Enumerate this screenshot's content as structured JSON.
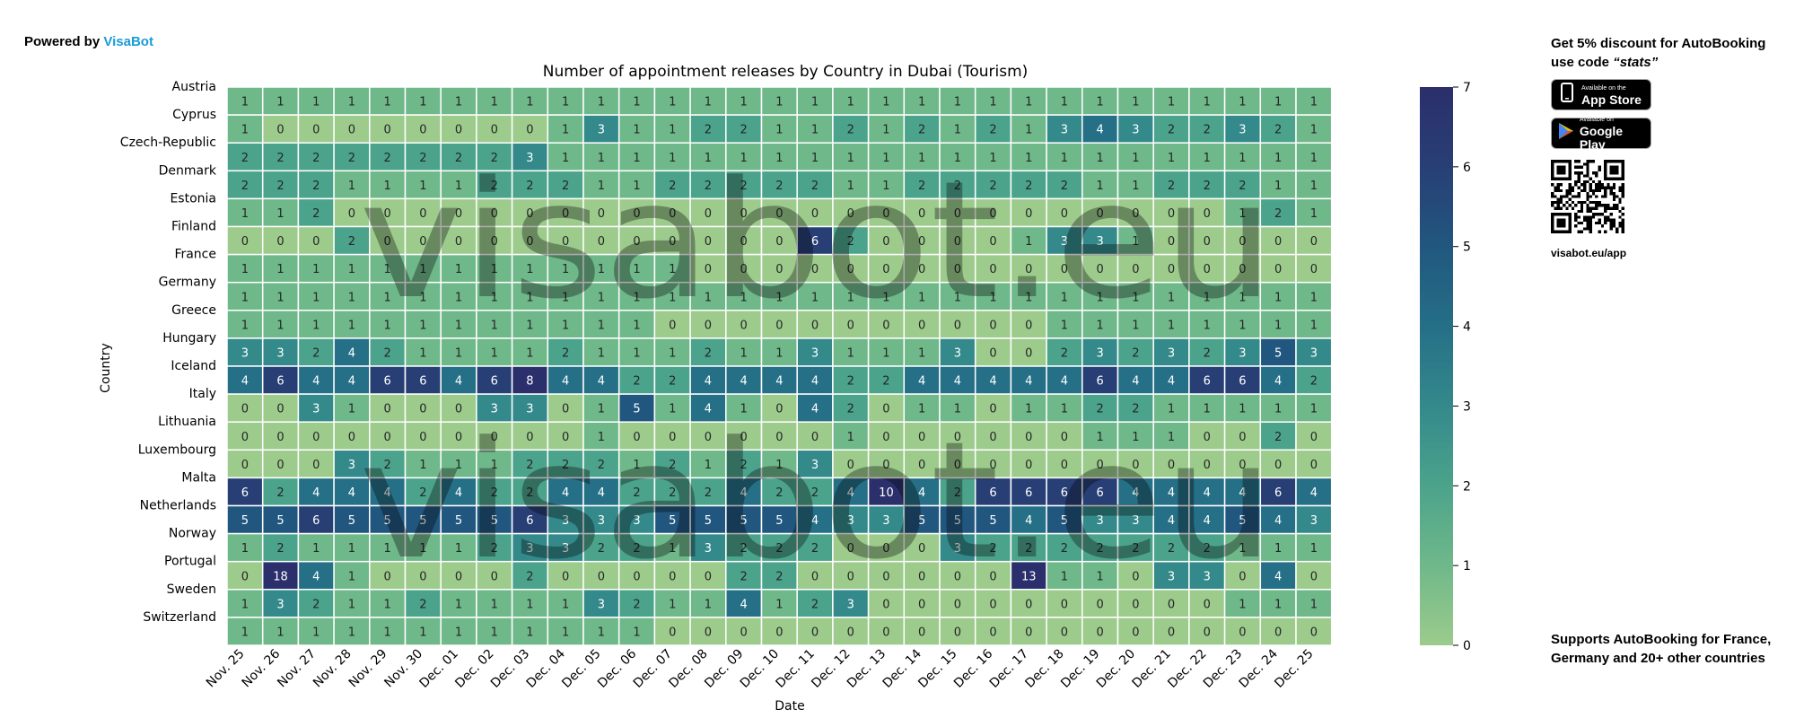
{
  "header": {
    "powered_prefix": "Powered by",
    "powered_brand": "VisaBot",
    "brand_color": "#1a9bd8"
  },
  "sidebar": {
    "promo_prefix": "Get 5% discount for",
    "promo_product": "AutoBooking",
    "promo_middle": "use code",
    "promo_code": "“stats”",
    "app_store_small": "Available on the",
    "app_store_big": "App Store",
    "google_play_small": "Available on",
    "google_play_big": "Google Play",
    "app_store_icon": "phone-icon",
    "google_play_icon": "play-triangle-icon",
    "qr_caption": "visabot.eu/app",
    "support_prefix": "Supports",
    "support_product": "AutoBooking",
    "support_rest": "for France, Germany and 20+ other countries"
  },
  "chart_data": {
    "type": "heatmap",
    "title": "Number of appointment releases by Country in Dubai (Tourism)",
    "xlabel": "Date",
    "ylabel": "Country",
    "watermark": "visabot.eu",
    "color_scale": {
      "min": 0,
      "max": 7,
      "ticks": [
        0,
        1,
        2,
        3,
        4,
        5,
        6,
        7
      ],
      "low_color": "#9ccb8c",
      "high_color": "#2b2f6b"
    },
    "x": [
      "Nov. 25",
      "Nov. 26",
      "Nov. 27",
      "Nov. 28",
      "Nov. 29",
      "Nov. 30",
      "Dec. 01",
      "Dec. 02",
      "Dec. 03",
      "Dec. 04",
      "Dec. 05",
      "Dec. 06",
      "Dec. 07",
      "Dec. 08",
      "Dec. 09",
      "Dec. 10",
      "Dec. 11",
      "Dec. 12",
      "Dec. 13",
      "Dec. 14",
      "Dec. 15",
      "Dec. 16",
      "Dec. 17",
      "Dec. 18",
      "Dec. 19",
      "Dec. 20",
      "Dec. 21",
      "Dec. 22",
      "Dec. 23",
      "Dec. 24",
      "Dec. 25"
    ],
    "y": [
      "Austria",
      "Cyprus",
      "Czech-Republic",
      "Denmark",
      "Estonia",
      "Finland",
      "France",
      "Germany",
      "Greece",
      "Hungary",
      "Iceland",
      "Italy",
      "Lithuania",
      "Luxembourg",
      "Malta",
      "Netherlands",
      "Norway",
      "Portugal",
      "Sweden",
      "Switzerland"
    ],
    "values": [
      [
        1,
        1,
        1,
        1,
        1,
        1,
        1,
        1,
        1,
        1,
        1,
        1,
        1,
        1,
        1,
        1,
        1,
        1,
        1,
        1,
        1,
        1,
        1,
        1,
        1,
        1,
        1,
        1,
        1,
        1,
        1
      ],
      [
        1,
        0,
        0,
        0,
        0,
        0,
        0,
        0,
        0,
        1,
        3,
        1,
        1,
        2,
        2,
        1,
        1,
        2,
        1,
        2,
        1,
        2,
        1,
        3,
        4,
        3,
        2,
        2,
        3,
        2,
        1
      ],
      [
        2,
        2,
        2,
        2,
        2,
        2,
        2,
        2,
        3,
        1,
        1,
        1,
        1,
        1,
        1,
        1,
        1,
        1,
        1,
        1,
        1,
        1,
        1,
        1,
        1,
        1,
        1,
        1,
        1,
        1,
        1
      ],
      [
        2,
        2,
        2,
        1,
        1,
        1,
        1,
        2,
        2,
        2,
        1,
        1,
        2,
        2,
        2,
        2,
        2,
        1,
        1,
        2,
        2,
        2,
        2,
        2,
        1,
        1,
        2,
        2,
        2,
        1,
        1
      ],
      [
        1,
        1,
        2,
        0,
        0,
        0,
        0,
        0,
        0,
        0,
        0,
        0,
        0,
        0,
        0,
        0,
        0,
        0,
        0,
        0,
        0,
        0,
        0,
        0,
        0,
        0,
        0,
        0,
        1,
        2,
        1
      ],
      [
        0,
        0,
        0,
        2,
        0,
        0,
        0,
        0,
        0,
        0,
        0,
        0,
        0,
        0,
        0,
        0,
        6,
        2,
        0,
        0,
        0,
        0,
        1,
        3,
        3,
        1,
        0,
        0,
        0,
        0,
        0
      ],
      [
        1,
        1,
        1,
        1,
        1,
        1,
        1,
        1,
        1,
        1,
        1,
        1,
        1,
        0,
        0,
        0,
        0,
        0,
        0,
        0,
        0,
        0,
        0,
        0,
        0,
        0,
        0,
        0,
        0,
        0,
        0
      ],
      [
        1,
        1,
        1,
        1,
        1,
        1,
        1,
        1,
        1,
        1,
        1,
        1,
        1,
        1,
        1,
        1,
        1,
        1,
        1,
        1,
        1,
        1,
        1,
        1,
        1,
        1,
        1,
        1,
        1,
        1,
        1
      ],
      [
        1,
        1,
        1,
        1,
        1,
        1,
        1,
        1,
        1,
        1,
        1,
        1,
        0,
        0,
        0,
        0,
        0,
        0,
        0,
        0,
        0,
        0,
        0,
        1,
        1,
        1,
        1,
        1,
        1,
        1,
        1
      ],
      [
        3,
        3,
        2,
        4,
        2,
        1,
        1,
        1,
        1,
        2,
        1,
        1,
        1,
        2,
        1,
        1,
        3,
        1,
        1,
        1,
        3,
        0,
        0,
        2,
        3,
        2,
        3,
        2,
        3,
        5,
        3
      ],
      [
        4,
        6,
        4,
        4,
        6,
        6,
        4,
        6,
        8,
        4,
        4,
        2,
        2,
        4,
        4,
        4,
        4,
        2,
        2,
        4,
        4,
        4,
        4,
        4,
        6,
        4,
        4,
        6,
        6,
        4,
        2
      ],
      [
        0,
        0,
        3,
        1,
        0,
        0,
        0,
        3,
        3,
        0,
        1,
        5,
        1,
        4,
        1,
        0,
        4,
        2,
        0,
        1,
        1,
        0,
        1,
        1,
        2,
        2,
        1,
        1,
        1,
        1,
        1
      ],
      [
        0,
        0,
        0,
        0,
        0,
        0,
        0,
        0,
        0,
        0,
        1,
        0,
        0,
        0,
        0,
        0,
        0,
        1,
        0,
        0,
        0,
        0,
        0,
        0,
        1,
        1,
        1,
        0,
        0,
        2,
        0
      ],
      [
        0,
        0,
        0,
        3,
        2,
        1,
        1,
        1,
        2,
        2,
        2,
        1,
        2,
        1,
        2,
        1,
        3,
        0,
        0,
        0,
        0,
        0,
        0,
        0,
        0,
        0,
        0,
        0,
        0,
        0,
        0
      ],
      [
        6,
        2,
        4,
        4,
        4,
        2,
        4,
        2,
        2,
        4,
        4,
        2,
        2,
        2,
        4,
        2,
        2,
        4,
        10,
        4,
        2,
        6,
        6,
        6,
        6,
        4,
        4,
        4,
        4,
        6,
        4
      ],
      [
        5,
        5,
        6,
        5,
        5,
        5,
        5,
        5,
        6,
        3,
        3,
        3,
        5,
        5,
        5,
        5,
        4,
        3,
        3,
        5,
        5,
        5,
        4,
        5,
        3,
        3,
        4,
        4,
        5,
        4,
        3
      ],
      [
        1,
        2,
        1,
        1,
        1,
        1,
        1,
        2,
        3,
        3,
        2,
        2,
        1,
        3,
        2,
        2,
        2,
        0,
        0,
        0,
        3,
        2,
        2,
        2,
        2,
        2,
        2,
        2,
        1,
        1,
        1
      ],
      [
        0,
        18,
        4,
        1,
        0,
        0,
        0,
        0,
        2,
        0,
        0,
        0,
        0,
        0,
        2,
        2,
        0,
        0,
        0,
        0,
        0,
        0,
        13,
        1,
        1,
        0,
        3,
        3,
        0,
        4,
        0
      ],
      [
        1,
        3,
        2,
        1,
        1,
        2,
        1,
        1,
        1,
        1,
        3,
        2,
        1,
        1,
        4,
        1,
        2,
        3,
        0,
        0,
        0,
        0,
        0,
        0,
        0,
        0,
        0,
        0,
        1,
        1,
        1
      ],
      [
        1,
        1,
        1,
        1,
        1,
        1,
        1,
        1,
        1,
        1,
        1,
        1,
        0,
        0,
        0,
        0,
        0,
        0,
        0,
        0,
        0,
        0,
        0,
        0,
        0,
        0,
        0,
        0,
        0,
        0,
        0
      ]
    ]
  }
}
